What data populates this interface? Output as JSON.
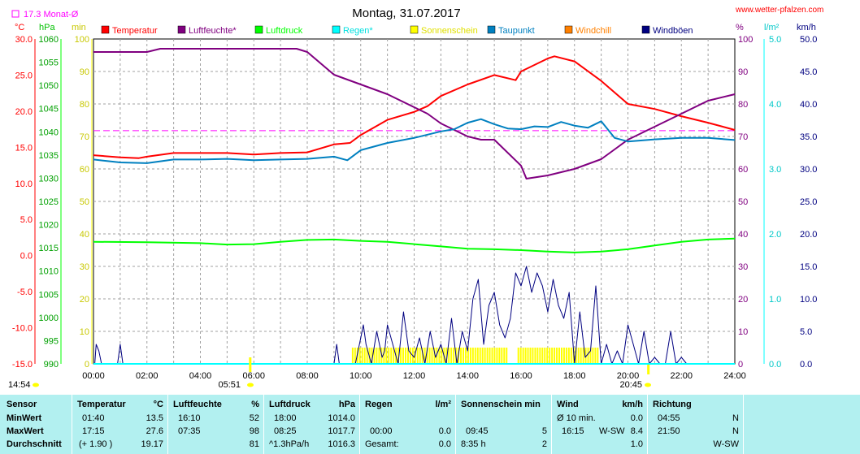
{
  "header": {
    "title": "Montag, 31.07.2017",
    "site": "www.wetter-pfalzen.com",
    "monthly_avg_label": "17.3 Monat-Ø"
  },
  "axes_units": {
    "left_temp": "°C",
    "left_press": "hPa",
    "left_min": "min",
    "right_pct": "%",
    "right_rain": "l/m²",
    "right_wind": "km/h"
  },
  "legend": [
    {
      "label": "Temperatur",
      "color": "#ff0000"
    },
    {
      "label": "Luftfeuchte*",
      "color": "#800080"
    },
    {
      "label": "Luftdruck",
      "color": "#00ff00"
    },
    {
      "label": "Regen*",
      "color": "#00ffff"
    },
    {
      "label": "Sonnenschein",
      "color": "#ffff00"
    },
    {
      "label": "Taupunkt",
      "color": "#0080c0"
    },
    {
      "label": "Windchill",
      "color": "#ff8000"
    },
    {
      "label": "Windböen",
      "color": "#000080"
    }
  ],
  "chart_data": {
    "type": "line",
    "title": "Montag, 31.07.2017",
    "x_ticks": [
      "00:00",
      "02:00",
      "04:00",
      "06:00",
      "08:00",
      "10:00",
      "12:00",
      "14:00",
      "16:00",
      "18:00",
      "20:00",
      "22:00",
      "24:00"
    ],
    "x_range_hours": [
      0,
      24
    ],
    "axes": {
      "temp_c": {
        "range": [
          -15,
          30
        ],
        "ticks": [
          "30.0",
          "25.0",
          "20.0",
          "15.0",
          "10.0",
          "5.0",
          "0.0",
          "-5.0",
          "-10.0",
          "-15.0"
        ]
      },
      "pressure_hpa": {
        "range": [
          990,
          1060
        ],
        "ticks": [
          "1060",
          "1055",
          "1050",
          "1045",
          "1040",
          "1035",
          "1030",
          "1025",
          "1020",
          "1015",
          "1010",
          "1005",
          "1000",
          "995",
          "990"
        ]
      },
      "sunshine_min": {
        "range": [
          0,
          100
        ],
        "ticks": [
          "100",
          "90",
          "80",
          "70",
          "60",
          "50",
          "40",
          "30",
          "20",
          "10",
          "0"
        ]
      },
      "humidity_pct": {
        "range": [
          0,
          100
        ],
        "ticks": [
          "100",
          "90",
          "80",
          "70",
          "60",
          "50",
          "40",
          "30",
          "20",
          "10",
          "0"
        ]
      },
      "rain_lm2": {
        "range": [
          0,
          5
        ],
        "ticks": [
          "5.0",
          "4.0",
          "3.0",
          "2.0",
          "1.0",
          "0.0"
        ]
      },
      "wind_kmh": {
        "range": [
          0,
          50
        ],
        "ticks": [
          "50.0",
          "45.0",
          "40.0",
          "35.0",
          "30.0",
          "25.0",
          "20.0",
          "15.0",
          "10.0",
          "5.0",
          "0.0"
        ]
      }
    },
    "monthly_avg_temp": 17.3,
    "series": [
      {
        "name": "Temperatur",
        "color": "#ff0000",
        "axis": "temp_c",
        "x": [
          0,
          1,
          1.7,
          2,
          3,
          4,
          5,
          6,
          7,
          8,
          9,
          9.6,
          10,
          11,
          12,
          12.5,
          13,
          14,
          15,
          15.8,
          16,
          17,
          17.25,
          18,
          19,
          20,
          21,
          22,
          23,
          24
        ],
        "y": [
          13.9,
          13.6,
          13.5,
          13.7,
          14.2,
          14.2,
          14.2,
          14.0,
          14.2,
          14.3,
          15.4,
          15.6,
          16.7,
          18.8,
          19.9,
          20.7,
          22.1,
          23.7,
          25.0,
          24.3,
          25.5,
          27.3,
          27.6,
          26.9,
          24.2,
          21.0,
          20.3,
          19.3,
          18.4,
          17.4
        ]
      },
      {
        "name": "Luftfeuchte*",
        "color": "#800080",
        "axis": "humidity_pct",
        "x": [
          0,
          2,
          2.5,
          3,
          4,
          5,
          6,
          7,
          7.6,
          8,
          9,
          10,
          11,
          12,
          12.5,
          13,
          14,
          14.5,
          15,
          16,
          16.2,
          17,
          18,
          19,
          20,
          21,
          22,
          23,
          24
        ],
        "y": [
          96,
          96,
          97,
          97,
          97,
          97,
          97,
          97,
          97,
          96,
          89,
          86,
          83,
          79,
          77,
          74,
          70,
          69,
          69,
          61,
          57,
          58,
          60,
          63,
          69,
          73,
          77,
          81,
          83
        ]
      },
      {
        "name": "Luftdruck",
        "color": "#00ff00",
        "axis": "pressure_hpa",
        "x": [
          0,
          2,
          4,
          5,
          6,
          7,
          8,
          9,
          10,
          11,
          12,
          13,
          14,
          15,
          16,
          17,
          18,
          19,
          20,
          21,
          22,
          23,
          24
        ],
        "y": [
          1016.3,
          1016.2,
          1016.0,
          1015.7,
          1015.8,
          1016.3,
          1016.7,
          1016.8,
          1016.5,
          1016.3,
          1015.8,
          1015.3,
          1014.8,
          1014.7,
          1014.5,
          1014.2,
          1014.0,
          1014.2,
          1014.7,
          1015.5,
          1016.3,
          1016.8,
          1017.0
        ]
      },
      {
        "name": "Taupunkt",
        "color": "#0080c0",
        "axis": "temp_c",
        "x": [
          0,
          1,
          2,
          3,
          4,
          5,
          6,
          7,
          8,
          9,
          9.5,
          10,
          11,
          12,
          13,
          13.5,
          14,
          14.5,
          15,
          15.5,
          16,
          16.5,
          17,
          17.5,
          18,
          18.5,
          19,
          19.5,
          20,
          21,
          22,
          23,
          24
        ],
        "y": [
          13.3,
          12.9,
          12.8,
          13.3,
          13.3,
          13.4,
          13.2,
          13.3,
          13.4,
          13.7,
          13.2,
          14.6,
          15.6,
          16.3,
          17.2,
          17.5,
          18.4,
          18.9,
          18.2,
          17.6,
          17.5,
          17.9,
          17.8,
          18.5,
          18.0,
          17.7,
          18.6,
          16.3,
          15.8,
          16.1,
          16.3,
          16.3,
          16.0
        ]
      },
      {
        "name": "Sonnenschein",
        "color": "#ffff00",
        "axis": "sunshine_min",
        "segments": [
          [
            9.7,
            15.5
          ],
          [
            15.9,
            18.9
          ]
        ],
        "marks": [
          5.85,
          20.75
        ]
      },
      {
        "name": "Windböen",
        "color": "#000080",
        "axis": "wind_kmh",
        "x": [
          0,
          0.05,
          0.1,
          0.2,
          0.3,
          0.5,
          0.7,
          0.9,
          1,
          1.1,
          1.2,
          1.4,
          3,
          6,
          8,
          9,
          9.1,
          9.2,
          9.3,
          9.4,
          9.5,
          9.6,
          9.8,
          10.0,
          10.1,
          10.2,
          10.4,
          10.6,
          10.8,
          10.9,
          11.0,
          11.2,
          11.4,
          11.6,
          11.8,
          12.0,
          12.2,
          12.4,
          12.6,
          12.8,
          13.0,
          13.2,
          13.4,
          13.6,
          13.8,
          14.0,
          14.2,
          14.4,
          14.6,
          14.8,
          15.0,
          15.2,
          15.4,
          15.6,
          15.8,
          16.0,
          16.2,
          16.4,
          16.6,
          16.8,
          17.0,
          17.2,
          17.4,
          17.6,
          17.8,
          18.0,
          18.2,
          18.4,
          18.6,
          18.8,
          19.0,
          19.2,
          19.4,
          19.6,
          19.8,
          20.0,
          20.2,
          20.4,
          20.6,
          20.8,
          21.0,
          21.2,
          21.4,
          21.6,
          21.8,
          22.0,
          22.2,
          22.4,
          22.6,
          22.8,
          23,
          24
        ],
        "y": [
          0,
          0,
          3,
          2,
          0,
          0,
          0,
          0,
          3,
          0,
          0,
          0,
          0,
          0,
          0,
          0,
          3,
          0,
          0,
          0,
          0,
          0,
          0,
          4,
          6,
          3,
          0,
          5,
          1,
          2,
          6,
          3,
          0,
          8,
          2,
          1,
          4,
          0,
          5,
          1,
          3,
          0,
          7,
          0,
          5,
          2,
          10,
          13,
          3,
          9,
          11,
          6,
          4,
          7,
          14,
          12,
          15,
          11,
          14,
          12,
          8,
          13,
          9,
          7,
          11,
          0,
          8,
          1,
          2,
          12,
          0,
          3,
          0,
          2,
          0,
          6,
          3,
          0,
          5,
          0,
          1,
          0,
          0,
          5,
          0,
          1,
          0,
          0,
          0,
          0,
          0,
          0
        ]
      }
    ]
  },
  "stats": {
    "headers": {
      "sensor": "Sensor",
      "temp": "Temperatur",
      "temp_unit": "°C",
      "hum": "Luftfeuchte",
      "hum_unit": "%",
      "press": "Luftdruck",
      "press_unit": "hPa",
      "rain": "Regen",
      "rain_unit": "l/m²",
      "sun": "Sonnenschein min",
      "wind": "Wind",
      "wind_unit": "km/h",
      "dir": "Richtung"
    },
    "min": {
      "label": "MinWert",
      "temp_time": "01:40",
      "temp_val": "13.5",
      "hum_time": "16:10",
      "hum_val": "52",
      "press_time": "18:00",
      "press_val": "1014.0",
      "wind_time": "Ø 10 min.",
      "wind_val": "0.0",
      "dir_time": "04:55",
      "dir_val": "N"
    },
    "max": {
      "label": "MaxWert",
      "temp_time": "17:15",
      "temp_val": "27.6",
      "hum_time": "07:35",
      "hum_val": "98",
      "press_time": "08:25",
      "press_val": "1017.7",
      "rain_time": "00:00",
      "rain_val": "0.0",
      "sun_time": "09:45",
      "sun_val": "5",
      "wind_time": "16:15",
      "wind_dir": "W-SW",
      "wind_val": "8.4",
      "dir_time": "21:50",
      "dir_val": "N"
    },
    "avg": {
      "label": "Durchschnitt",
      "temp_time": "(+ 1.90 )",
      "temp_val": "19.17",
      "hum_val": "81",
      "press_time": "^1.3hPa/h",
      "press_val": "1016.3",
      "rain_time": "Gesamt:",
      "rain_val": "0.0",
      "sun_time": "8:35 h",
      "sun_val": "2",
      "wind_val": "1.0",
      "dir_val": "W-SW"
    }
  },
  "footer_times": {
    "sunrise": "05:51",
    "sunset": "20:45",
    "left": "14:54"
  }
}
